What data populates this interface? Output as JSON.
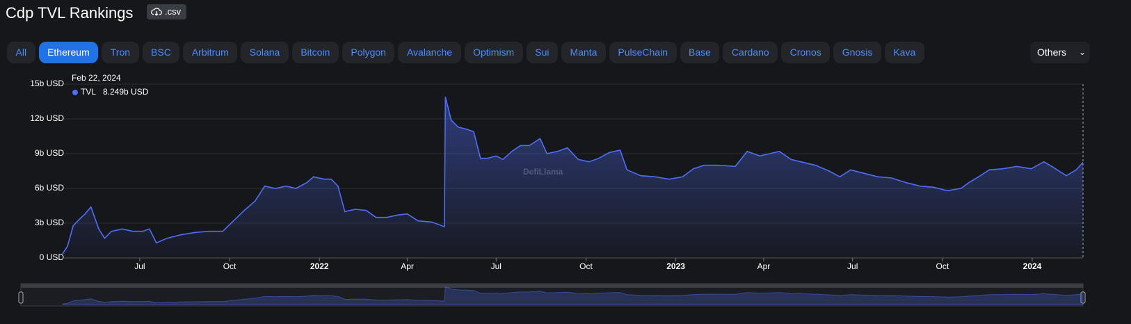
{
  "header": {
    "title": "Cdp TVL Rankings",
    "csv_button": ".csv"
  },
  "tabs": [
    "All",
    "Ethereum",
    "Tron",
    "BSC",
    "Arbitrum",
    "Solana",
    "Bitcoin",
    "Polygon",
    "Avalanche",
    "Optimism",
    "Sui",
    "Manta",
    "PulseChain",
    "Base",
    "Cardano",
    "Cronos",
    "Gnosis",
    "Kava"
  ],
  "active_tab": 1,
  "others_button": "Others",
  "chart_data": {
    "type": "area",
    "watermark": "DefiLlama",
    "tooltip": {
      "date": "Feb 22, 2024",
      "value_label": "8.249b USD"
    },
    "x": [
      "2021-04-13",
      "2021-04-18",
      "2021-04-24",
      "2021-05-01",
      "2021-05-06",
      "2021-05-12",
      "2021-05-15",
      "2021-05-20",
      "2021-05-26",
      "2021-06-02",
      "2021-06-13",
      "2021-06-24",
      "2021-07-04",
      "2021-07-11",
      "2021-07-18",
      "2021-07-29",
      "2021-08-12",
      "2021-08-27",
      "2021-09-10",
      "2021-09-24",
      "2021-10-05",
      "2021-10-16",
      "2021-10-27",
      "2021-11-06",
      "2021-11-17",
      "2021-11-28",
      "2021-12-08",
      "2021-12-19",
      "2021-12-26",
      "2022-01-06",
      "2022-01-13",
      "2022-01-20",
      "2022-01-27",
      "2022-02-07",
      "2022-02-18",
      "2022-02-28",
      "2022-03-11",
      "2022-03-22",
      "2022-04-01",
      "2022-04-12",
      "2022-04-26",
      "2022-05-09",
      "2022-05-10",
      "2022-05-16",
      "2022-05-23",
      "2022-06-01",
      "2022-06-08",
      "2022-06-15",
      "2022-06-22",
      "2022-07-01",
      "2022-07-08",
      "2022-07-17",
      "2022-07-26",
      "2022-08-04",
      "2022-08-15",
      "2022-08-22",
      "2022-09-02",
      "2022-09-12",
      "2022-09-23",
      "2022-10-04",
      "2022-10-14",
      "2022-10-25",
      "2022-11-05",
      "2022-11-12",
      "2022-11-26",
      "2022-12-11",
      "2022-12-25",
      "2023-01-08",
      "2023-01-19",
      "2023-01-30",
      "2023-02-13",
      "2023-03-03",
      "2023-03-15",
      "2023-03-28",
      "2023-04-07",
      "2023-04-17",
      "2023-04-29",
      "2023-05-09",
      "2023-05-24",
      "2023-06-07",
      "2023-06-18",
      "2023-06-29",
      "2023-07-13",
      "2023-07-27",
      "2023-08-10",
      "2023-08-25",
      "2023-09-08",
      "2023-09-22",
      "2023-10-06",
      "2023-10-20",
      "2023-10-28",
      "2023-11-07",
      "2023-11-18",
      "2023-12-02",
      "2023-12-16",
      "2023-12-31",
      "2024-01-13",
      "2024-01-21",
      "2024-02-05",
      "2024-02-15",
      "2024-02-22"
    ],
    "series": [
      {
        "name": "TVL",
        "color": "#4f6ef7",
        "values": [
          0.36,
          1.0,
          2.8,
          3.4,
          3.8,
          4.4,
          3.7,
          2.5,
          1.7,
          2.3,
          2.5,
          2.3,
          2.3,
          2.5,
          1.3,
          1.7,
          2.0,
          2.2,
          2.3,
          2.3,
          3.2,
          4.1,
          4.9,
          6.2,
          6.0,
          6.2,
          6.0,
          6.5,
          7.0,
          6.8,
          6.8,
          6.2,
          4.0,
          4.2,
          4.1,
          3.5,
          3.5,
          3.7,
          3.8,
          3.2,
          3.1,
          2.7,
          13.9,
          11.9,
          11.3,
          11.1,
          10.9,
          8.6,
          8.6,
          8.8,
          8.5,
          9.2,
          9.7,
          9.7,
          10.3,
          9.0,
          9.2,
          9.5,
          8.5,
          8.3,
          8.6,
          9.1,
          9.3,
          7.6,
          7.1,
          7.0,
          6.8,
          7.0,
          7.7,
          8.0,
          8.0,
          7.9,
          9.2,
          8.8,
          9.0,
          9.2,
          8.5,
          8.3,
          8.0,
          7.5,
          7.0,
          7.6,
          7.3,
          7.0,
          6.9,
          6.5,
          6.2,
          6.1,
          5.8,
          6.0,
          6.5,
          7.0,
          7.6,
          7.7,
          7.9,
          7.7,
          8.3,
          7.9,
          7.1,
          7.6,
          8.249
        ]
      }
    ],
    "xlim": [
      "2021-04-13",
      "2024-02-22"
    ],
    "xticks": [
      {
        "value": "2021-07-01",
        "label": "Jul"
      },
      {
        "value": "2021-10-01",
        "label": "Oct"
      },
      {
        "value": "2022-01-01",
        "label": "2022"
      },
      {
        "value": "2022-04-01",
        "label": "Apr"
      },
      {
        "value": "2022-07-01",
        "label": "Jul"
      },
      {
        "value": "2022-10-01",
        "label": "Oct"
      },
      {
        "value": "2023-01-01",
        "label": "2023"
      },
      {
        "value": "2023-04-01",
        "label": "Apr"
      },
      {
        "value": "2023-07-01",
        "label": "Jul"
      },
      {
        "value": "2023-10-01",
        "label": "Oct"
      },
      {
        "value": "2024-01-01",
        "label": "2024"
      }
    ],
    "ylim": [
      0,
      15
    ],
    "yticks": [
      {
        "value": 0,
        "label": "0 USD"
      },
      {
        "value": 3,
        "label": "3b USD"
      },
      {
        "value": 6,
        "label": "6b USD"
      },
      {
        "value": 9,
        "label": "9b USD"
      },
      {
        "value": 12,
        "label": "12b USD"
      },
      {
        "value": 15,
        "label": "15b USD"
      }
    ],
    "grid": true
  }
}
